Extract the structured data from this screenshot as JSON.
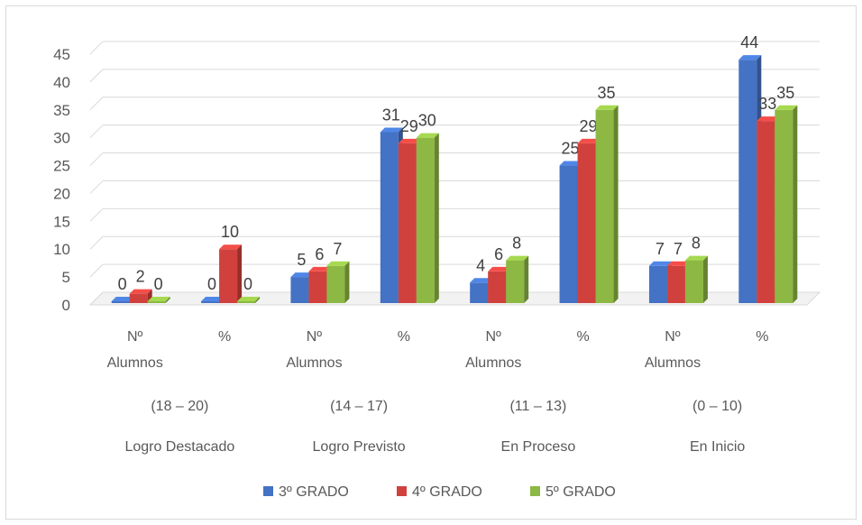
{
  "chart_data": {
    "type": "bar",
    "style": "3d-clustered-column",
    "ylim": [
      0,
      45
    ],
    "yticks": [
      0,
      5,
      10,
      15,
      20,
      25,
      30,
      35,
      40,
      45
    ],
    "grid": true,
    "legend_position": "bottom",
    "categories": [
      {
        "lines": [
          "Nº",
          "Alumnos"
        ]
      },
      {
        "lines": [
          "%"
        ]
      },
      {
        "lines": [
          "Nº",
          "Alumnos"
        ]
      },
      {
        "lines": [
          "%"
        ]
      },
      {
        "lines": [
          "Nº",
          "Alumnos"
        ]
      },
      {
        "lines": [
          "%"
        ]
      },
      {
        "lines": [
          "Nº",
          "Alumnos"
        ]
      },
      {
        "lines": [
          "%"
        ]
      }
    ],
    "groups": [
      {
        "range": "(18 – 20)",
        "name": "Logro Destacado"
      },
      {
        "range": "(14 – 17)",
        "name": "Logro Previsto"
      },
      {
        "range": "(11 – 13)",
        "name": "En Proceso"
      },
      {
        "range": "(0 – 10)",
        "name": "En Inicio"
      }
    ],
    "series": [
      {
        "name": "3º GRADO",
        "color": "#4472c4",
        "values": [
          0,
          0,
          5,
          31,
          4,
          25,
          7,
          44
        ]
      },
      {
        "name": "4º GRADO",
        "color": "#d0413d",
        "values": [
          2,
          10,
          6,
          29,
          6,
          29,
          7,
          33
        ]
      },
      {
        "name": "5º GRADO",
        "color": "#8db843",
        "values": [
          0,
          0,
          7,
          30,
          8,
          35,
          8,
          35
        ]
      }
    ]
  }
}
